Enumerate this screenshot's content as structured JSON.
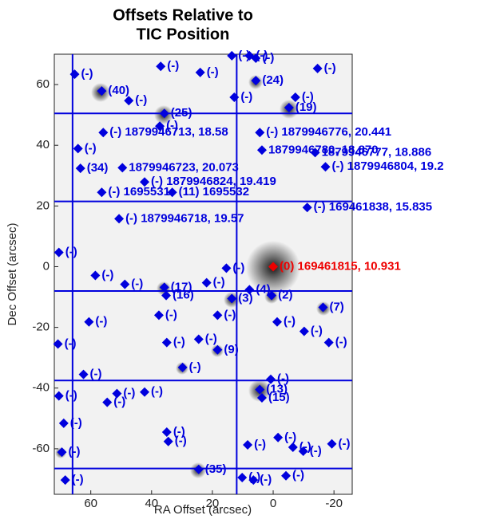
{
  "chart_data": {
    "type": "scatter",
    "title": "Offsets Relative to",
    "subtitle": "TIC Position",
    "x_label": "RA Offset (arcsec)",
    "y_label": "Dec Offset (arcsec)",
    "xlim": [
      72,
      -26
    ],
    "ylim": [
      -75,
      70
    ],
    "xticks": [
      60,
      40,
      20,
      0,
      -20
    ],
    "yticks": [
      -60,
      -40,
      -20,
      0,
      20,
      40,
      60
    ],
    "hlines": [
      50.5,
      21.5,
      -8,
      -37.5,
      -66.5
    ],
    "vlines": [
      66,
      12
    ],
    "line_color": "#0000dd",
    "series": [
      {
        "color": "#0000dd",
        "x": [
          13.6,
          7.8,
          5.7,
          -14.6,
          65.3,
          37,
          24,
          5.7,
          56.4,
          47.5,
          12.8,
          -7.3,
          -5.2,
          35.8,
          37.3,
          55.9,
          4.4,
          64.2,
          3.7,
          -13.8,
          63.4,
          49.6,
          -17.2,
          42.3,
          56.4,
          33.2,
          -11.2,
          50.7,
          70.5,
          58.5,
          48.8,
          35.8,
          35.2,
          21.9,
          13.6,
          15.4,
          0.5,
          -16.4,
          7.8,
          60.6,
          37.6,
          18.3,
          -1.3,
          -10.2,
          -18.3,
          70.8,
          35,
          24.5,
          18.3,
          29.8,
          62.4,
          0.8,
          4.4,
          3.7,
          70.5,
          51.4,
          54.6,
          42.3,
          68.9,
          35,
          34.5,
          8.4,
          -1.6,
          -6.5,
          -9.9,
          -19.3,
          69.5,
          68.4,
          24.5,
          10.2,
          6.5,
          -4.2
        ],
        "y": [
          69.5,
          69.5,
          68.7,
          65.3,
          63.4,
          66,
          64,
          61.3,
          57.9,
          54.7,
          55.8,
          55.8,
          52.4,
          50.5,
          46.3,
          44.2,
          44.2,
          38.9,
          38.4,
          37.6,
          32.4,
          32.6,
          32.9,
          27.9,
          24.5,
          24.5,
          19.5,
          15.8,
          4.7,
          -2.9,
          -5.8,
          -6.8,
          -9.5,
          -5.3,
          -10.5,
          -0.5,
          -9.5,
          -13.4,
          -7.6,
          -18.2,
          -16,
          -16,
          -18.2,
          -21.3,
          -25,
          -25.5,
          -25,
          -23.9,
          -27.4,
          -33.2,
          -35.5,
          -37.1,
          -40.5,
          -43.2,
          -42.6,
          -41.8,
          -44.7,
          -41.3,
          -51.6,
          -54.5,
          -57.6,
          -58.7,
          -56.3,
          -59.5,
          -60.8,
          -58.4,
          -61.1,
          -70.3,
          -66.8,
          -69.5,
          -70.3,
          -68.9
        ],
        "labels": [
          "(-)",
          "(-)",
          "(-)",
          "(-)",
          "(-)",
          "(-)",
          "(-)",
          "(24)",
          "(40)",
          "(-)",
          "(-)",
          "(-)",
          "(19)",
          "(25)",
          "(-)",
          "(-) 1879946713, 18.58",
          "(-) 1879946776, 20.441",
          "(-)",
          "1879946780, 18.870",
          "1879946777, 18.886",
          "(34)",
          "1879946723, 20.073",
          "(-) 1879946804, 19.2",
          "(-) 1879946824, 19.419",
          "(-) 1695531",
          "(11) 1695532",
          "(-) 169461838, 15.835",
          "(-) 1879946718, 19.57",
          "(-)",
          "(-)",
          "(-)",
          "(17)",
          "(16)",
          "(-)",
          "(3)",
          "(-)",
          "(2)",
          "(7)",
          "(4)",
          "(-)",
          "(-)",
          "(-)",
          "(-)",
          "(-)",
          "(-)",
          "(-)",
          "(-)",
          "(-)",
          "(9)",
          "(-)",
          "(-)",
          "(-)",
          "(13)",
          "(15)",
          "(-)",
          "(-)",
          "(-)",
          "(-)",
          "(-)",
          "(-)",
          "(-)",
          "(-)",
          "(-)",
          "(-)",
          "(-)",
          "(-)",
          "(-)",
          "(-)",
          "(35)",
          "(-)",
          "(-)",
          "(-)"
        ]
      },
      {
        "color": "#ee0000",
        "x": [
          0
        ],
        "y": [
          0
        ],
        "labels": [
          "(0) 169461815, 10.931"
        ]
      }
    ]
  }
}
